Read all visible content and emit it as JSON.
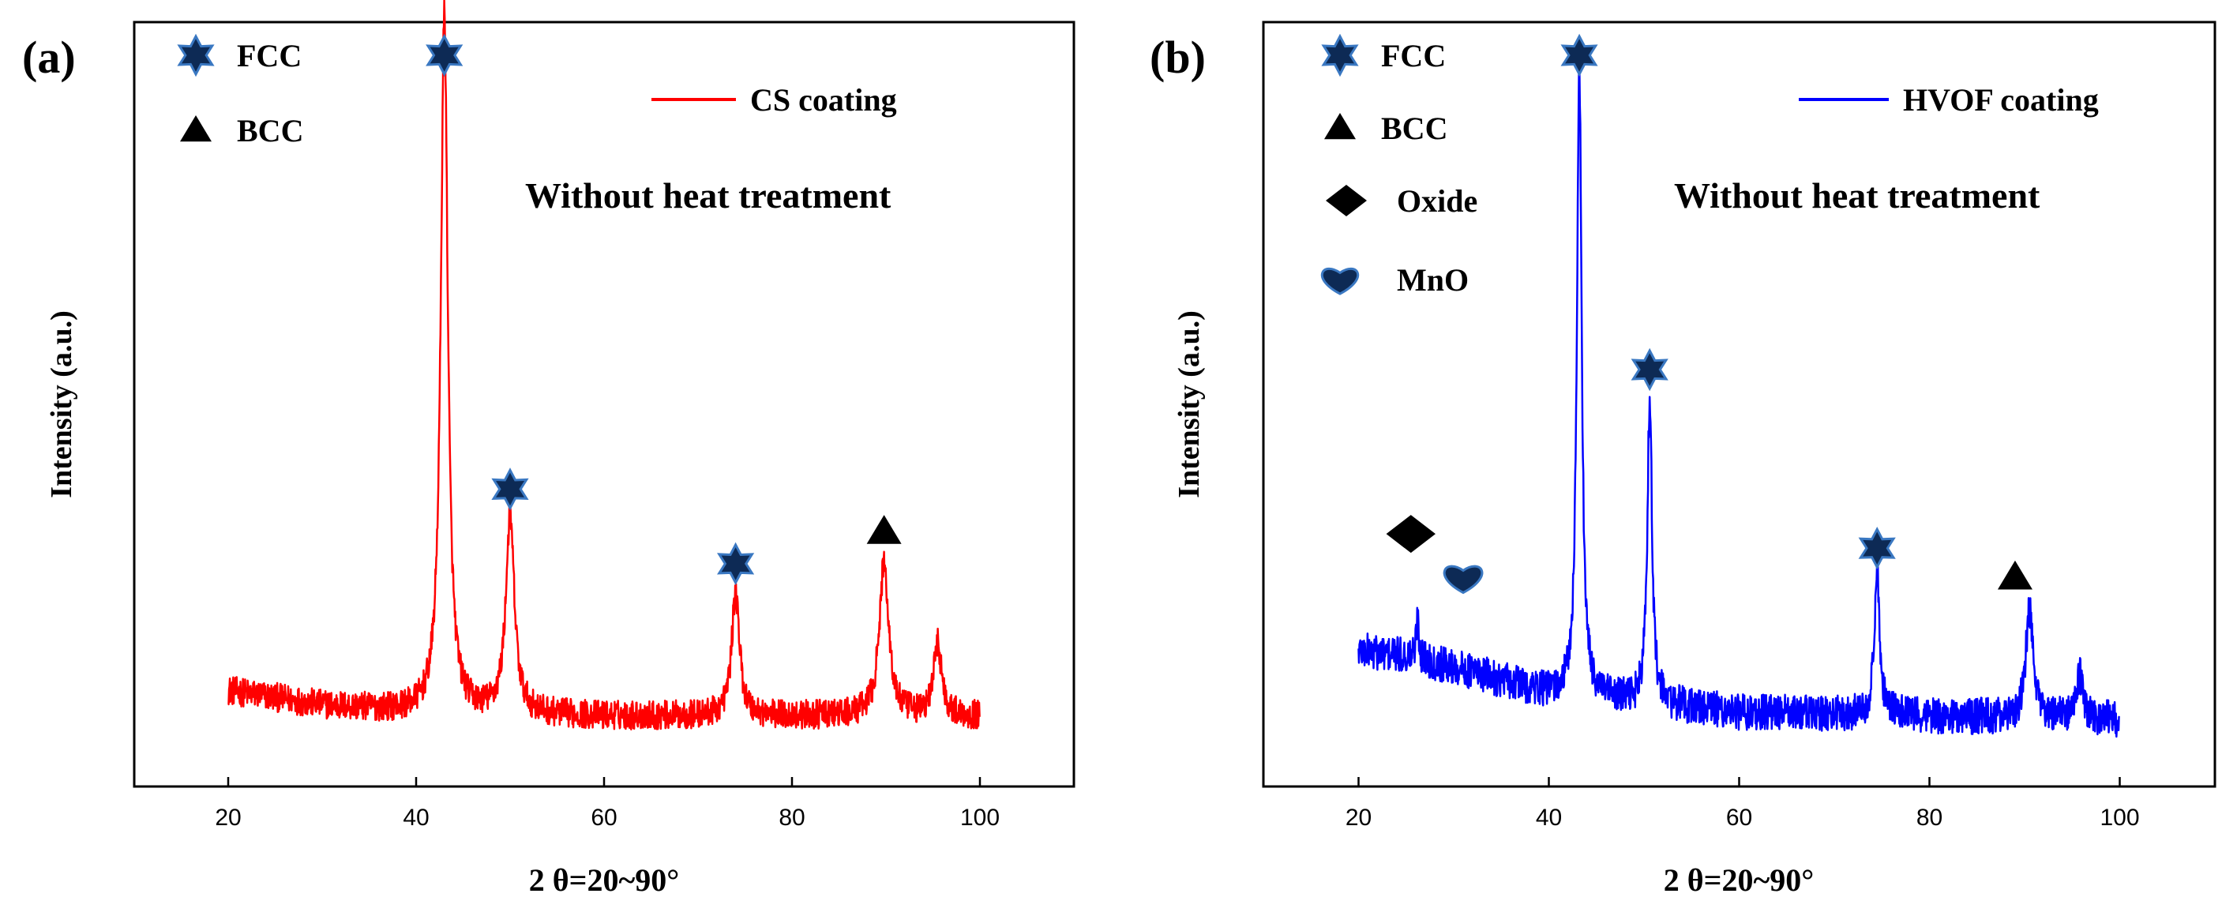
{
  "chart_data": [
    {
      "type": "line",
      "panel_label": "(a)",
      "xlabel": "2 θ=20~90°",
      "ylabel": "Intensity (a.u.)",
      "annotation": "Without heat treatment",
      "xlim": [
        10,
        110
      ],
      "x_ticks": [
        20,
        40,
        60,
        80,
        100
      ],
      "y_ticks_shown": false,
      "series": [
        {
          "name": "CS coating",
          "color": "#ff0000",
          "x_range": [
            20,
            100
          ],
          "baseline": [
            [
              20,
              0.095
            ],
            [
              30,
              0.075
            ],
            [
              40,
              0.065
            ],
            [
              60,
              0.06
            ],
            [
              80,
              0.06
            ],
            [
              100,
              0.06
            ]
          ],
          "noise": 0.02,
          "peaks": [
            {
              "x": 43.0,
              "height": 0.96,
              "width": 0.45
            },
            {
              "x": 50.0,
              "height": 0.27,
              "width": 0.55
            },
            {
              "x": 74.0,
              "height": 0.17,
              "width": 0.5
            },
            {
              "x": 89.8,
              "height": 0.21,
              "width": 0.6
            },
            {
              "x": 95.5,
              "height": 0.1,
              "width": 0.5
            }
          ]
        }
      ],
      "legend": [
        {
          "label": "FCC",
          "icon": "star-icon"
        },
        {
          "label": "BCC",
          "icon": "triangle-icon"
        }
      ],
      "markers": [
        {
          "x": 43.0,
          "icon": "star-icon",
          "label": "FCC"
        },
        {
          "x": 50.0,
          "icon": "star-icon",
          "label": "FCC"
        },
        {
          "x": 74.0,
          "icon": "star-icon",
          "label": "FCC"
        },
        {
          "x": 89.8,
          "icon": "triangle-icon",
          "label": "BCC"
        }
      ]
    },
    {
      "type": "line",
      "panel_label": "(b)",
      "xlabel": "2 θ=20~90°",
      "ylabel": "Intensity (a.u.)",
      "annotation": "Without heat treatment",
      "xlim": [
        10,
        110
      ],
      "x_ticks": [
        20,
        40,
        60,
        80,
        100
      ],
      "y_ticks_shown": false,
      "series": [
        {
          "name": "HVOF coating",
          "color": "#0000ff",
          "x_range": [
            20,
            100
          ],
          "baseline": [
            [
              20,
              0.15
            ],
            [
              26,
              0.14
            ],
            [
              32,
              0.12
            ],
            [
              40,
              0.09
            ],
            [
              60,
              0.065
            ],
            [
              80,
              0.06
            ],
            [
              100,
              0.055
            ]
          ],
          "noise": 0.025,
          "peaks": [
            {
              "x": 43.2,
              "height": 0.87,
              "width": 0.3
            },
            {
              "x": 50.6,
              "height": 0.42,
              "width": 0.3
            },
            {
              "x": 74.5,
              "height": 0.19,
              "width": 0.35
            },
            {
              "x": 90.5,
              "height": 0.15,
              "width": 0.45
            },
            {
              "x": 95.8,
              "height": 0.06,
              "width": 0.4
            },
            {
              "x": 26.2,
              "height": 0.06,
              "width": 0.15
            }
          ]
        }
      ],
      "legend": [
        {
          "label": "FCC",
          "icon": "star-icon"
        },
        {
          "label": "BCC",
          "icon": "triangle-icon"
        },
        {
          "label": "Oxide",
          "icon": "diamond-icon"
        },
        {
          "label": "MnO",
          "icon": "heart-icon"
        }
      ],
      "markers": [
        {
          "x": 43.2,
          "icon": "star-icon",
          "label": "FCC"
        },
        {
          "x": 50.6,
          "icon": "star-icon",
          "label": "FCC"
        },
        {
          "x": 74.5,
          "icon": "star-icon",
          "label": "FCC"
        },
        {
          "x": 89.0,
          "icon": "triangle-icon",
          "label": "BCC"
        },
        {
          "x": 25.5,
          "icon": "diamond-icon",
          "label": "Oxide"
        },
        {
          "x": 31.0,
          "icon": "heart-icon",
          "label": "MnO"
        }
      ]
    }
  ],
  "colors": {
    "star_fill": "#0d2a55",
    "star_stroke": "#3a78c2",
    "marker_black": "#000000",
    "axis": "#000000"
  }
}
